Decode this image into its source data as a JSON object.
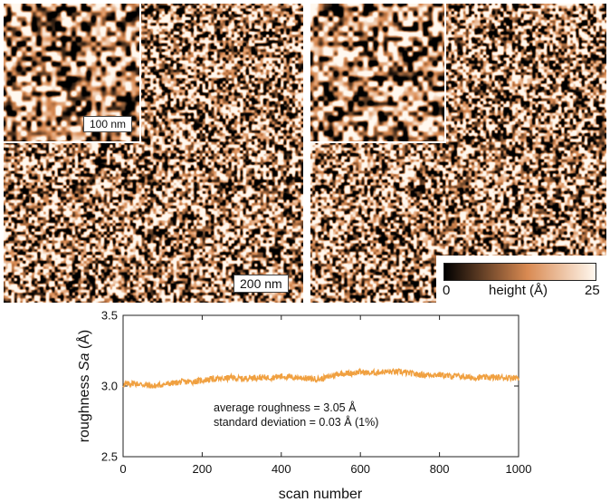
{
  "images": {
    "left": {
      "inset_scale": "100 nm",
      "main_scale": "200 nm"
    },
    "right": {}
  },
  "colorbar": {
    "min_label": "0",
    "max_label": "25",
    "label": "height (Å)",
    "min_color": "#000000",
    "mid_color": "#d98a52",
    "max_color": "#fff8ef"
  },
  "chart_data": {
    "type": "line",
    "xlabel": "scan number",
    "ylabel_prefix": "roughness ",
    "ylabel_var": "Sa",
    "ylabel_unit": " (Å)",
    "xlim": [
      0,
      1000
    ],
    "ylim": [
      2.5,
      3.5
    ],
    "xticks": [
      "0",
      "200",
      "400",
      "600",
      "800",
      "1000"
    ],
    "yticks": [
      "2.5",
      "3.0",
      "3.5"
    ],
    "line_color": "#f0a040",
    "annotations": [
      "average roughness = 3.05 Å",
      "standard deviation = 0.03 Å (1%)"
    ],
    "x": [
      0,
      25,
      50,
      75,
      100,
      125,
      150,
      175,
      200,
      225,
      250,
      275,
      300,
      325,
      350,
      375,
      400,
      425,
      450,
      475,
      500,
      525,
      550,
      575,
      600,
      625,
      650,
      675,
      700,
      725,
      750,
      775,
      800,
      825,
      850,
      875,
      900,
      925,
      950,
      975,
      1000
    ],
    "values": [
      3.01,
      3.02,
      3.01,
      3.0,
      3.01,
      3.02,
      3.03,
      3.03,
      3.04,
      3.05,
      3.05,
      3.06,
      3.05,
      3.06,
      3.06,
      3.06,
      3.07,
      3.06,
      3.06,
      3.05,
      3.05,
      3.07,
      3.09,
      3.09,
      3.1,
      3.09,
      3.1,
      3.1,
      3.1,
      3.09,
      3.08,
      3.08,
      3.08,
      3.07,
      3.07,
      3.06,
      3.06,
      3.06,
      3.06,
      3.06,
      3.06
    ],
    "noise_amplitude": 0.03
  }
}
